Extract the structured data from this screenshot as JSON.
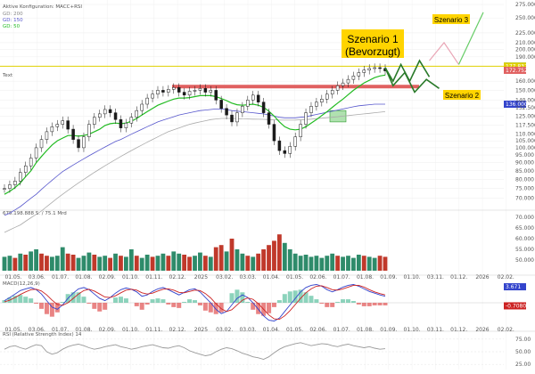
{
  "header": {
    "config": "Aktive Konfiguration: MACC+RSI",
    "gd200": "GD: 200",
    "gd150": "GD: 150",
    "gd50": "GD: 50",
    "text_label": "Text",
    "volume_label": "675.198.888 S. / 75.1 Mrd",
    "macd_label": "MACD(12,26,9)",
    "rsi_label": "RSI (Relative Strength Index) 14"
  },
  "annotations": {
    "szenario1_line1": "Szenario 1",
    "szenario1_line2": "(Bevorzugt)",
    "szenario2": "Szenario 2",
    "szenario3": "Szenario 3"
  },
  "colors": {
    "price": "#1a1a1a",
    "gd50": "#22bb22",
    "gd150": "#5555cc",
    "gd200": "#aaaaaa",
    "resistance": "#e06060",
    "level_line": "#e0d000",
    "scenario_green": "#2a7a2a",
    "scenario_pink": "#e9a5b5",
    "scenario_lightgreen": "#66cc66",
    "vol_up": "#2e8b6a",
    "vol_down": "#c0392b",
    "macd_line": "#3344cc",
    "signal_line": "#cc2222",
    "label_yellow": "#ffd400",
    "rsi_line": "#999999"
  },
  "chart_data": [
    {
      "type": "line",
      "title": "",
      "ylim": [
        66000,
        275000
      ],
      "log_scale": true,
      "y_ticks": [
        "275.000",
        "250.000",
        "225.000",
        "210.000",
        "200.000",
        "190.000",
        "160.000",
        "150.000",
        "140.000",
        "132.500",
        "125.000",
        "117.500",
        "110.000",
        "105.000",
        "100.000",
        "95.000",
        "90.000",
        "85.000",
        "80.000",
        "75.000",
        "70.000"
      ],
      "price_tags": [
        {
          "label": "177.914",
          "value": 177914,
          "color": "#2a8a2a"
        },
        {
          "label": "177.837",
          "value": 177837,
          "color": "#e0d000"
        },
        {
          "label": "172.752",
          "value": 172752,
          "color": "#e06060"
        },
        {
          "label": "136.000",
          "value": 136000,
          "color": "#3344cc"
        }
      ],
      "level_line": 177837,
      "resistance": {
        "value": 154000,
        "from": "01.11.",
        "to": "01.09."
      },
      "support_box": {
        "value_low": 120000,
        "value_high": 130000,
        "at": "01.07."
      },
      "x_ticks": [
        "01.05.",
        "03.06.",
        "01.07.",
        "01.08.",
        "02.09.",
        "01.10.",
        "01.11.",
        "02.12.",
        "2025",
        "03.02.",
        "03.03.",
        "01.04.",
        "01.05.",
        "02.06.",
        "01.07.",
        "01.08.",
        "01.09.",
        "01.10.",
        "03.11.",
        "01.12.",
        "2026",
        "02.02."
      ],
      "price": [
        75000,
        77000,
        79000,
        84000,
        88000,
        93000,
        100000,
        106000,
        112000,
        116000,
        118000,
        121000,
        114000,
        106000,
        100000,
        108000,
        118000,
        124000,
        127000,
        131000,
        128000,
        122000,
        115000,
        119000,
        124000,
        130000,
        136000,
        142000,
        146000,
        150000,
        148000,
        151000,
        153000,
        148000,
        145000,
        149000,
        150000,
        152000,
        148000,
        150000,
        140000,
        132000,
        126000,
        120000,
        128000,
        134000,
        140000,
        145000,
        138000,
        128000,
        118000,
        105000,
        98000,
        96000,
        101000,
        108000,
        118000,
        128000,
        134000,
        138000,
        141000,
        146000,
        150000,
        155000,
        158000,
        162000,
        166000,
        170000,
        173000,
        175000,
        176000,
        175000,
        172000
      ],
      "gd50": [
        72000,
        73500,
        75500,
        78000,
        81500,
        85000,
        90000,
        94000,
        98000,
        102000,
        105000,
        107000,
        109000,
        109000,
        108500,
        109000,
        110000,
        112000,
        114000,
        117000,
        118500,
        119000,
        118500,
        119000,
        120500,
        123000,
        126000,
        129000,
        132000,
        135000,
        137000,
        139000,
        141000,
        142000,
        142000,
        142500,
        143500,
        144500,
        144500,
        144500,
        143500,
        141500,
        139500,
        137000,
        135500,
        135000,
        135500,
        136000,
        135000,
        133000,
        129500,
        125000,
        120000,
        116000,
        114000,
        113500,
        114000,
        116000,
        119000,
        122000,
        125500,
        129000,
        133000,
        137000,
        141000,
        145500,
        150000,
        154000,
        158000,
        161000,
        164000,
        166000,
        167000
      ],
      "gd150": [
        62000,
        63000,
        64500,
        66000,
        68000,
        70000,
        72000,
        74500,
        77000,
        79500,
        82000,
        84500,
        86500,
        88500,
        90500,
        92500,
        94500,
        96500,
        98500,
        100500,
        102500,
        104500,
        106000,
        108000,
        110000,
        112000,
        114000,
        116000,
        118000,
        120000,
        121500,
        123000,
        124500,
        126000,
        127000,
        128000,
        129000,
        130000,
        130500,
        131000,
        131500,
        131500,
        131000,
        130000,
        129500,
        129000,
        128500,
        128000,
        127500,
        127000,
        126000,
        125000,
        124000,
        123500,
        123500,
        123500,
        124000,
        124500,
        125500,
        126500,
        127500,
        128500,
        129500,
        130500,
        131500,
        132500,
        133500,
        134500,
        135000,
        135500,
        136000,
        136000,
        136000
      ],
      "gd200": [
        55000,
        56000,
        57000,
        58000,
        59500,
        61000,
        62500,
        64000,
        66000,
        68000,
        70000,
        72000,
        74000,
        76000,
        78000,
        80000,
        82000,
        84000,
        86000,
        88000,
        90000,
        92000,
        94000,
        96000,
        98000,
        100000,
        102000,
        104000,
        106000,
        108000,
        110000,
        112000,
        113500,
        115000,
        116500,
        118000,
        119000,
        120000,
        121000,
        122000,
        122500,
        123000,
        123000,
        123000,
        122800,
        122600,
        122500,
        122400,
        122300,
        122200,
        122000,
        121800,
        121500,
        121500,
        121500,
        121600,
        121800,
        122000,
        122400,
        122800,
        123200,
        123600,
        124000,
        124500,
        125000,
        125500,
        126000,
        126500,
        127000,
        127500,
        128000,
        128500,
        129000
      ]
    },
    {
      "type": "bar",
      "title": "",
      "ylim": [
        45000,
        70000
      ],
      "y_ticks": [
        "70.000",
        "65.000",
        "60.000",
        "55.000",
        "50.000"
      ],
      "values": [
        51500,
        52000,
        51000,
        53000,
        52500,
        54000,
        55000,
        53000,
        52000,
        51500,
        52000,
        56000,
        53000,
        52500,
        51000,
        52000,
        53500,
        52500,
        51500,
        52000,
        51000,
        53000,
        52000,
        51500,
        55000,
        52000,
        51000,
        52500,
        51500,
        52000,
        53000,
        52000,
        54000,
        53000,
        52500,
        51500,
        52000,
        53500,
        52000,
        51500,
        56000,
        57000,
        54000,
        60000,
        55000,
        53000,
        52000,
        51500,
        53000,
        55000,
        57000,
        59000,
        62000,
        58000,
        55000,
        53000,
        52000,
        52500,
        51500,
        52000,
        51000,
        52000,
        53000,
        52000,
        51500,
        52000,
        51000,
        52500,
        52000,
        51500,
        51000,
        52000,
        51500
      ],
      "directions": [
        1,
        1,
        0,
        1,
        0,
        1,
        1,
        0,
        0,
        1,
        1,
        1,
        0,
        0,
        1,
        1,
        1,
        0,
        1,
        1,
        0,
        1,
        0,
        1,
        1,
        0,
        1,
        1,
        0,
        1,
        1,
        0,
        1,
        1,
        0,
        0,
        1,
        1,
        0,
        1,
        0,
        0,
        1,
        0,
        1,
        1,
        0,
        1,
        0,
        0,
        0,
        0,
        0,
        1,
        1,
        1,
        1,
        1,
        1,
        1,
        1,
        1,
        1,
        0,
        1,
        1,
        1,
        1,
        0,
        1,
        1,
        0,
        0
      ]
    },
    {
      "type": "line",
      "title": "",
      "ylim": [
        -4.5,
        4.5
      ],
      "price_tags": [
        {
          "label": "3.671",
          "value": 3.671,
          "color": "#3344cc"
        },
        {
          "label": "-0.7080",
          "value": -0.708,
          "color": "#cc2222"
        }
      ],
      "macd": [
        0.5,
        1.2,
        2,
        2.8,
        3.2,
        3.5,
        3,
        2,
        0.5,
        -1,
        -1.5,
        -0.5,
        1,
        2.2,
        3.2,
        3.5,
        3,
        2,
        1,
        0.5,
        1.2,
        2.2,
        3,
        3.4,
        3.1,
        2.5,
        1.5,
        1.8,
        2.6,
        3.2,
        3.5,
        3,
        2.4,
        1.8,
        2.4,
        3,
        3.2,
        2.5,
        1.2,
        0,
        -1.5,
        -2.5,
        -2,
        -0.5,
        1,
        1.8,
        1.2,
        0,
        -1.5,
        -3,
        -4,
        -4.2,
        -3.5,
        -2,
        -0.5,
        1,
        2.5,
        3.5,
        4,
        4.2,
        3.8,
        3,
        2.5,
        3,
        3.6,
        4,
        4.2,
        3.8,
        3.2,
        2.6,
        2.2,
        1.8,
        1.5
      ],
      "signal": [
        0.2,
        0.6,
        1.2,
        1.9,
        2.5,
        3,
        3.1,
        2.7,
        1.8,
        0.6,
        -0.4,
        -0.6,
        0,
        1,
        2,
        2.8,
        3.1,
        2.7,
        2,
        1.3,
        1.2,
        1.6,
        2.3,
        2.9,
        3.1,
        2.9,
        2.3,
        2,
        2.2,
        2.7,
        3.1,
        3.2,
        2.9,
        2.4,
        2.3,
        2.6,
        2.9,
        2.8,
        2.1,
        1.1,
        -0.2,
        -1.4,
        -2,
        -1.6,
        -0.5,
        0.6,
        1.1,
        0.8,
        -0.2,
        -1.5,
        -2.8,
        -3.7,
        -3.8,
        -3,
        -1.8,
        -0.4,
        1,
        2.3,
        3.2,
        3.8,
        3.9,
        3.5,
        3,
        2.9,
        3.2,
        3.6,
        4,
        4,
        3.6,
        3,
        2.5,
        2.1,
        1.8
      ]
    },
    {
      "type": "line",
      "title": "",
      "ylim": [
        20,
        80
      ],
      "y_ticks": [
        "75.00",
        "50.00",
        "25.00"
      ],
      "rsi": [
        55,
        60,
        62,
        58,
        55,
        60,
        64,
        62,
        50,
        45,
        48,
        55,
        60,
        63,
        65,
        62,
        58,
        55,
        57,
        60,
        62,
        64,
        60,
        58,
        55,
        57,
        60,
        62,
        64,
        61,
        58,
        57,
        60,
        62,
        58,
        52,
        48,
        45,
        42,
        44,
        50,
        55,
        58,
        56,
        52,
        47,
        44,
        40,
        38,
        35,
        40,
        48,
        55,
        60,
        63,
        66,
        68,
        65,
        62,
        64,
        66,
        65,
        62,
        60,
        63,
        65,
        62,
        60,
        58,
        60,
        57,
        55,
        56
      ]
    }
  ],
  "scenarios": {
    "main_origin": [
      176000,
      0
    ],
    "path_s1": [
      [
        0,
        176000
      ],
      [
        0.08,
        160000
      ],
      [
        0.16,
        180000
      ],
      [
        0.25,
        160000
      ],
      [
        0.35,
        185000
      ],
      [
        0.45,
        165000
      ]
    ],
    "path_s2": [
      [
        0,
        176000
      ],
      [
        0.08,
        155000
      ],
      [
        0.2,
        170000
      ],
      [
        0.3,
        148000
      ],
      [
        0.42,
        162000
      ],
      [
        0.55,
        152000
      ]
    ],
    "path_s3_pink": [
      [
        0.45,
        185000
      ],
      [
        0.6,
        210000
      ],
      [
        0.75,
        180000
      ]
    ],
    "path_s3_green": [
      [
        0.75,
        180000
      ],
      [
        1.0,
        260000
      ]
    ]
  }
}
